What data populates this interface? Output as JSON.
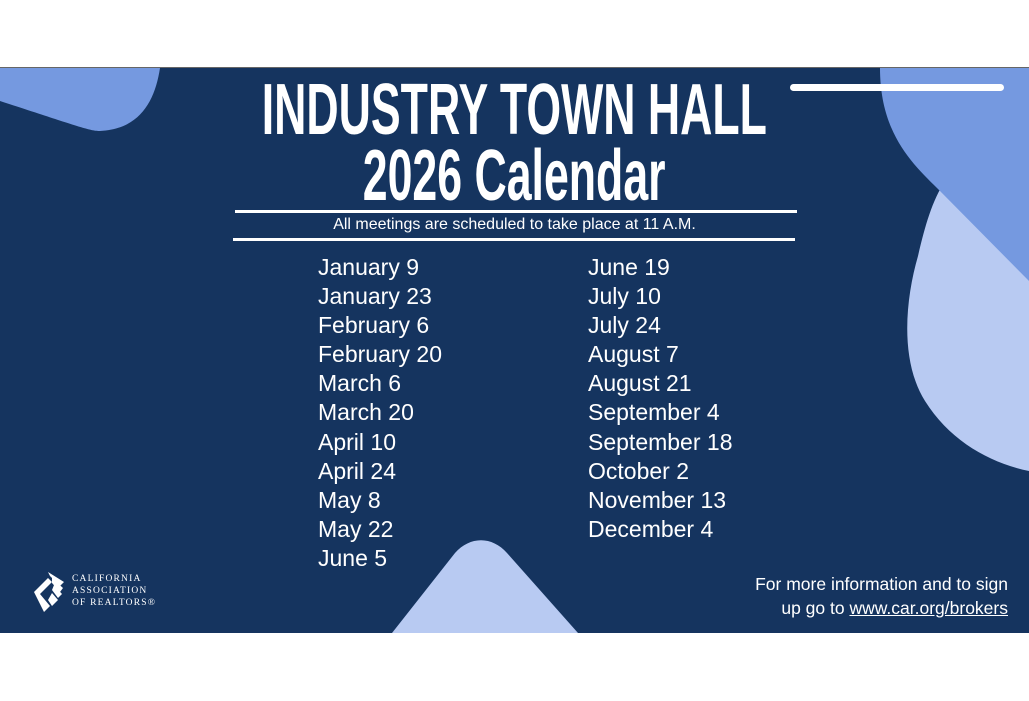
{
  "title_line1": "INDUSTRY TOWN HALL",
  "title_line2": "2026 Calendar",
  "subtitle": "All meetings are scheduled to take place at 11 A.M.",
  "dates_column1": [
    "January 9",
    "January 23",
    "February 6",
    "February 20",
    "March 6",
    "March 20",
    "April 10",
    "April 24",
    "May 8",
    "May 22",
    "June 5"
  ],
  "dates_column2": [
    "June 19",
    "July 10",
    "July 24",
    "August 7",
    "August 21",
    "September 4",
    "September 18",
    "October 2",
    "November 13",
    "December 4"
  ],
  "info": {
    "line1": "For more information and to sign",
    "line2_prefix": "up go to ",
    "link": "www.car.org/brokers"
  },
  "logo": {
    "line1": "CALIFORNIA",
    "line2": "ASSOCIATION",
    "line3": "OF REALTORS®"
  },
  "colors": {
    "background": "#15345f",
    "accent_medium": "#7599e0",
    "accent_light": "#b8caf2",
    "text": "#ffffff"
  }
}
